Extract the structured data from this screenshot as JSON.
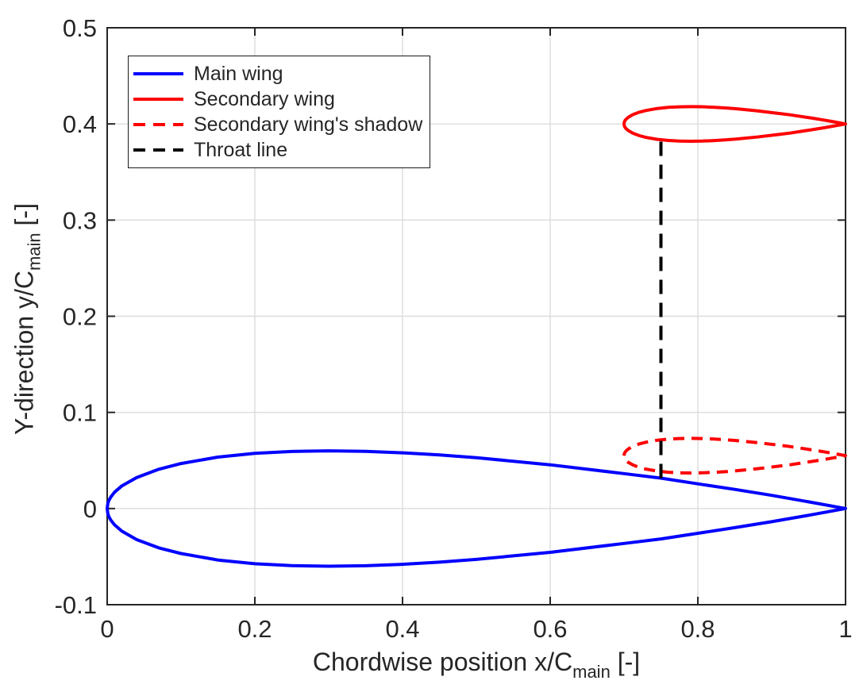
{
  "figure": {
    "background": "#ffffff",
    "text_color": "#262626"
  },
  "axes": {
    "xlabel": {
      "prefix": "Chordwise position x/C",
      "sub": "main",
      "suffix": " [-]"
    },
    "ylabel": {
      "prefix": "Y-direction y/C",
      "sub": "main",
      "suffix": " [-]"
    },
    "xlim": [
      0,
      1
    ],
    "ylim": [
      -0.1,
      0.5
    ],
    "xticks": [
      0,
      0.2,
      0.4,
      0.6,
      0.8,
      1
    ],
    "xtick_labels": [
      "0",
      "0.2",
      "0.4",
      "0.6",
      "0.8",
      "1"
    ],
    "yticks": [
      -0.1,
      0,
      0.1,
      0.2,
      0.3,
      0.4,
      0.5
    ],
    "ytick_labels": [
      "-0.1",
      "0",
      "0.1",
      "0.2",
      "0.3",
      "0.4",
      "0.5"
    ],
    "grid": true,
    "grid_color": "#dcdcdc",
    "box_color": "#262626"
  },
  "legend": {
    "position": "top-left",
    "entries": [
      {
        "label": "Main wing",
        "color": "#0000ff",
        "linestyle": "solid"
      },
      {
        "label": "Secondary wing",
        "color": "#ff0000",
        "linestyle": "solid"
      },
      {
        "label": "Secondary wing's shadow",
        "color": "#ff0000",
        "linestyle": "dashed"
      },
      {
        "label": "Throat line",
        "color": "#000000",
        "linestyle": "dashed"
      }
    ]
  },
  "chart_data": {
    "type": "line",
    "title": "",
    "xlabel": "Chordwise position x/C_main [-]",
    "ylabel": "Y-direction y/C_main [-]",
    "xlim": [
      0,
      1
    ],
    "ylim": [
      -0.1,
      0.5
    ],
    "grid": true,
    "legend_position": "top-left",
    "airfoil_profile_half_thickness": [
      [
        0,
        0
      ],
      [
        0.001,
        0.0056
      ],
      [
        0.0025,
        0.0087
      ],
      [
        0.005,
        0.0122
      ],
      [
        0.01,
        0.017
      ],
      [
        0.02,
        0.0236
      ],
      [
        0.04,
        0.0323
      ],
      [
        0.07,
        0.0409
      ],
      [
        0.1,
        0.0468
      ],
      [
        0.15,
        0.0535
      ],
      [
        0.2,
        0.0574
      ],
      [
        0.25,
        0.0594
      ],
      [
        0.3,
        0.06
      ],
      [
        0.35,
        0.0595
      ],
      [
        0.4,
        0.058
      ],
      [
        0.45,
        0.0558
      ],
      [
        0.5,
        0.0529
      ],
      [
        0.6,
        0.0455
      ],
      [
        0.7,
        0.0363
      ],
      [
        0.75,
        0.0316
      ],
      [
        0.8,
        0.0257
      ],
      [
        0.85,
        0.0199
      ],
      [
        0.9,
        0.0137
      ],
      [
        0.95,
        0.007
      ],
      [
        1,
        0
      ]
    ],
    "series": [
      {
        "name": "Main wing",
        "shape": "airfoil_outline",
        "color": "#0000ff",
        "linestyle": "solid",
        "linewidth": 4,
        "leading_edge": [
          0,
          0
        ],
        "chord": 1.0
      },
      {
        "name": "Secondary wing",
        "shape": "airfoil_outline",
        "color": "#ff0000",
        "linestyle": "solid",
        "linewidth": 4,
        "leading_edge": [
          0.7,
          0.4
        ],
        "chord": 0.3
      },
      {
        "name": "Secondary wing's shadow",
        "shape": "airfoil_outline",
        "color": "#ff0000",
        "linestyle": "dashed",
        "linewidth": 4,
        "leading_edge": [
          0.7,
          0.055
        ],
        "chord": 0.3
      },
      {
        "name": "Throat line",
        "shape": "segment",
        "color": "#000000",
        "linestyle": "dashed",
        "linewidth": 4,
        "points": [
          [
            0.75,
            0.0316
          ],
          [
            0.75,
            0.3835
          ]
        ]
      }
    ]
  }
}
